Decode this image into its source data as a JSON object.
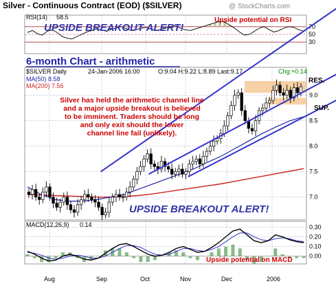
{
  "header": {
    "title": "Silver - Continuous Contract (EOD) ($SILVER)",
    "watermark": "@ StockCharts.com"
  },
  "rsi": {
    "label": "RSI(14)",
    "value": "58.5",
    "levels": [
      70,
      50,
      30
    ],
    "alert": "UPSIDE BREAKOUT ALERT!",
    "note": "Upside potential on RSI",
    "values": [
      55,
      60,
      52,
      48,
      58,
      62,
      55,
      45,
      40,
      38,
      44,
      50,
      56,
      60,
      64,
      62,
      58,
      63,
      67,
      70,
      65,
      60,
      62,
      66,
      68,
      64,
      60,
      63,
      66,
      70,
      72,
      66,
      62,
      60,
      64,
      68,
      72,
      76,
      80,
      84,
      82,
      74,
      66,
      56,
      48,
      50,
      58,
      66,
      70,
      62,
      56,
      60,
      66,
      70,
      68,
      62,
      58.5
    ]
  },
  "info": {
    "chart_label": "6-month Chart - arithmetic",
    "symbol": "$SILVER Daily",
    "date": "24-Jan-2006 16:00",
    "ohlc": "O:9.04 H:9.22 L:8.89 Last:9.17",
    "chg": "Chg:+0.14",
    "ma50_label": "MA(50) 8.58",
    "ma200_label": "MA(200) 7.56"
  },
  "annotations": {
    "commentary": [
      "Silver has held the arithmetic channel line",
      "and a major upside breakout is believed",
      "to be imminent. Traders should be long",
      "and only exit should the lower",
      "channel line fail (unlikely)."
    ],
    "alert_main": "UPSIDE BREAKOUT ALERT!",
    "res": "RES.",
    "sup": "SUP."
  },
  "chart_data": {
    "type": "candlestick",
    "y_ticks": [
      7.0,
      7.5,
      8.0,
      8.5,
      9.0
    ],
    "ylim": [
      6.55,
      9.55
    ],
    "x_labels": [
      "Aug",
      "Sep",
      "Oct",
      "Nov",
      "Dec",
      "2006"
    ],
    "close": [
      7.05,
      7.15,
      7.0,
      6.95,
      7.1,
      7.2,
      7.0,
      6.88,
      6.8,
      6.9,
      7.0,
      6.85,
      6.75,
      6.7,
      6.85,
      6.95,
      7.05,
      7.0,
      6.95,
      6.9,
      6.8,
      6.65,
      6.7,
      6.9,
      7.0,
      7.05,
      7.0,
      7.0,
      7.1,
      7.2,
      7.35,
      7.5,
      7.6,
      7.75,
      7.85,
      7.65,
      7.6,
      7.55,
      7.7,
      7.6,
      7.55,
      7.45,
      7.5,
      7.55,
      7.45,
      7.5,
      7.65,
      7.7,
      7.75,
      7.65,
      7.8,
      7.9,
      8.0,
      8.1,
      8.15,
      8.25,
      8.4,
      8.6,
      8.8,
      9.0,
      9.05,
      8.7,
      8.5,
      8.35,
      8.3,
      8.5,
      8.7,
      8.75,
      8.85,
      8.9,
      9.1,
      9.2,
      9.05,
      9.0,
      9.1,
      8.95,
      9.15,
      9.05,
      9.17
    ],
    "ma50": [
      7.2,
      7.05,
      6.95,
      6.92,
      6.92,
      6.95,
      7.0,
      7.05,
      7.15,
      7.25,
      7.35,
      7.45,
      7.55,
      7.68,
      7.8,
      7.95,
      8.1,
      8.25,
      8.38,
      8.5,
      8.58
    ],
    "ma200": [
      7.05,
      7.04,
      7.03,
      7.02,
      7.01,
      7.0,
      7.0,
      7.01,
      7.03,
      7.06,
      7.1,
      7.14,
      7.18,
      7.22,
      7.26,
      7.31,
      7.36,
      7.41,
      7.46,
      7.51,
      7.56
    ],
    "channel": {
      "upper": [
        [
          0.27,
          7.5
        ],
        [
          1.0,
          10.3
        ]
      ],
      "middle": [
        [
          0.44,
          7.45
        ],
        [
          1.0,
          9.1
        ]
      ],
      "lower": [
        [
          0.58,
          7.4
        ],
        [
          1.0,
          8.6
        ]
      ]
    },
    "macd": {
      "label": "MACD(12,26,9)",
      "value": "0.14",
      "y_ticks": [
        0.3,
        0.2,
        0.1,
        0.0
      ],
      "ylim": [
        -0.08,
        0.36
      ],
      "macd": [
        0.05,
        0.02,
        -0.02,
        -0.05,
        -0.04,
        0.0,
        0.02,
        0.0,
        -0.03,
        -0.04,
        -0.02,
        0.03,
        0.08,
        0.12,
        0.13,
        0.1,
        0.06,
        0.02,
        0.0,
        0.01,
        0.04,
        0.08,
        0.1,
        0.07,
        0.04,
        0.05,
        0.09,
        0.14,
        0.2,
        0.26,
        0.28,
        0.22,
        0.16,
        0.14,
        0.16,
        0.22,
        0.2,
        0.17,
        0.15,
        0.14
      ],
      "signal": [
        0.04,
        0.03,
        0.01,
        -0.02,
        -0.03,
        -0.02,
        0.0,
        0.01,
        0.0,
        -0.02,
        -0.02,
        0.0,
        0.04,
        0.08,
        0.11,
        0.11,
        0.09,
        0.05,
        0.02,
        0.01,
        0.02,
        0.05,
        0.08,
        0.08,
        0.06,
        0.05,
        0.07,
        0.1,
        0.15,
        0.2,
        0.24,
        0.24,
        0.2,
        0.17,
        0.16,
        0.18,
        0.19,
        0.18,
        0.16,
        0.15
      ],
      "note": "Upside potential on MACD"
    }
  },
  "colors": {
    "grid": "#9999cc",
    "alert": "#3333aa",
    "note": "#cc0000",
    "candle": "#000000",
    "ma50": "#2222aa",
    "ma200": "#cc2222",
    "channel": "#3333cc",
    "band": "#f4c898",
    "rsi_fill": "#c9c9a0",
    "hist": "#88bb88"
  }
}
